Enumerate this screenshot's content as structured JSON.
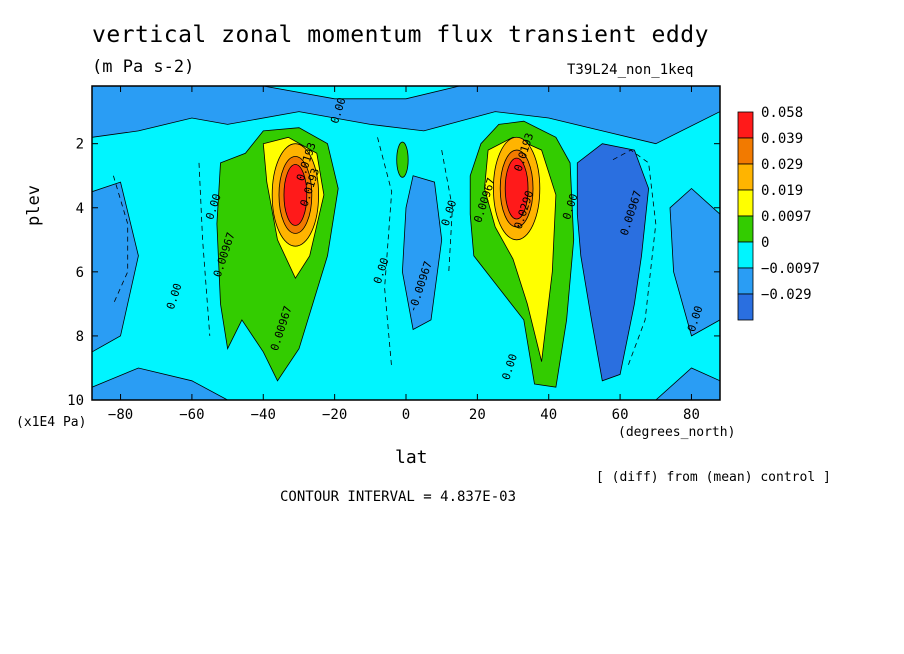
{
  "title": "vertical zonal momentum flux transient eddy",
  "units": "(m Pa s-2)",
  "run_label": "T39L24_non_1keq",
  "footer": {
    "diff_note": "[ (diff) from (mean) control ]",
    "contour_interval": "CONTOUR INTERVAL = 4.837E-03"
  },
  "colors": {
    "level_fills": [
      "#2a6fe0",
      "#2a9df4",
      "#00f5ff",
      "#33cc00",
      "#ffff00",
      "#ffb400",
      "#f27a00",
      "#ff1a1a"
    ],
    "frame": "#000000"
  },
  "chart_data": {
    "type": "heatmap",
    "title": "vertical zonal momentum flux transient eddy",
    "subtitle": "(m Pa s-2)",
    "xlabel": "lat",
    "x_unit": "(degrees_north)",
    "ylabel": "plev",
    "y_unit": "(x1E4 Pa)",
    "xlim": [
      -88,
      88
    ],
    "ylim": [
      0.2,
      10
    ],
    "y_inverted": true,
    "x_ticks": [
      -80,
      -60,
      -40,
      -20,
      0,
      20,
      40,
      60,
      80
    ],
    "y_ticks": [
      2,
      4,
      6,
      8,
      10
    ],
    "colorbar": {
      "levels": [
        "0.058",
        "0.039",
        "0.029",
        "0.019",
        "0.0097",
        "0",
        "-0.0097",
        "-0.029"
      ],
      "placement": "right"
    },
    "contour_interval": 0.004837,
    "contour_labels": [
      {
        "text": "0.00",
        "x": -18,
        "y": 1.0
      },
      {
        "text": "0.0193",
        "x": -27,
        "y": 2.6
      },
      {
        "text": "0.0193",
        "x": -26,
        "y": 3.4
      },
      {
        "text": "0.00",
        "x": -53,
        "y": 4.0
      },
      {
        "text": "0.00967",
        "x": -50,
        "y": 5.5
      },
      {
        "text": "0.00",
        "x": -64,
        "y": 6.8
      },
      {
        "text": "0.00967",
        "x": -34,
        "y": 7.8
      },
      {
        "text": "0.00",
        "x": -6,
        "y": 6.0
      },
      {
        "text": "-0.00967",
        "x": 5,
        "y": 6.5
      },
      {
        "text": "0.00",
        "x": 13,
        "y": 4.2
      },
      {
        "text": "0.0193",
        "x": 34,
        "y": 2.3
      },
      {
        "text": "0.00967",
        "x": 23,
        "y": 3.8
      },
      {
        "text": "0.0290",
        "x": 34,
        "y": 4.1
      },
      {
        "text": "0.00",
        "x": 47,
        "y": 4.0
      },
      {
        "text": "0.00967",
        "x": 64,
        "y": 4.2
      },
      {
        "text": "0.00",
        "x": 30,
        "y": 9.0
      },
      {
        "text": "0.00",
        "x": 82,
        "y": 7.5
      }
    ],
    "features": [
      {
        "lat": -30,
        "plev": 3.6,
        "peak": 0.058,
        "sign": "positive"
      },
      {
        "lat": 31,
        "plev": 3.4,
        "peak": 0.058,
        "sign": "positive"
      },
      {
        "lat": 57,
        "plev": 5.0,
        "peak": -0.0097,
        "sign": "negative"
      },
      {
        "lat": 5,
        "plev": 5.5,
        "peak": -0.0097,
        "sign": "negative"
      }
    ]
  }
}
